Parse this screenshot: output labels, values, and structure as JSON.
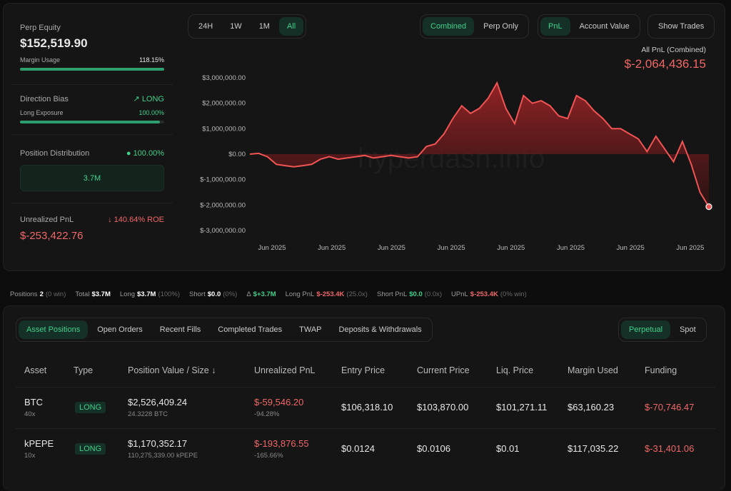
{
  "summary": {
    "perp_equity_label": "Perp Equity",
    "perp_equity": "$152,519.90",
    "margin_usage_label": "Margin Usage",
    "margin_usage": "118.15%",
    "margin_usage_fill": 1.0,
    "direction_bias_label": "Direction Bias",
    "direction_bias": "LONG",
    "long_exposure_label": "Long Exposure",
    "long_exposure": "100.00%",
    "long_exposure_fill": 0.97,
    "position_distribution_label": "Position Distribution",
    "position_distribution": "100.00%",
    "distribution_bar_value": "3.7M",
    "unrealized_pnl_label": "Unrealized PnL",
    "roe": "140.64% ROE",
    "unrealized_pnl": "$-253,422.76"
  },
  "chart_controls": {
    "ranges": [
      "24H",
      "1W",
      "1M",
      "All"
    ],
    "active_range": "All",
    "modes": [
      "Combined",
      "Perp Only"
    ],
    "metrics": [
      "PnL",
      "Account Value"
    ],
    "show_trades": "Show Trades"
  },
  "chart_header": {
    "label": "All PnL (Combined)",
    "value": "$-2,064,436.15"
  },
  "watermark": "hyperdash.info",
  "chart_data": {
    "type": "area",
    "y_ticks": [
      "$3,000,000.00",
      "$2,000,000.00",
      "$1,000,000.00",
      "$0.00",
      "$-1,000,000.00",
      "$-2,000,000.00",
      "$-3,000,000.00"
    ],
    "x_ticks": [
      "Jun 2025",
      "Jun 2025",
      "Jun 2025",
      "Jun 2025",
      "Jun 2025",
      "Jun 2025",
      "Jun 2025",
      "Jun 2025"
    ],
    "ylim": [
      -3000000,
      3000000
    ],
    "line_color": "#f05454",
    "values": [
      0,
      30000,
      -100000,
      -400000,
      -450000,
      -500000,
      -450000,
      -400000,
      -200000,
      -100000,
      -200000,
      -150000,
      -100000,
      -50000,
      -150000,
      -100000,
      -50000,
      -100000,
      -150000,
      -100000,
      300000,
      400000,
      800000,
      1400000,
      1900000,
      1600000,
      1800000,
      2200000,
      2800000,
      1800000,
      1200000,
      2300000,
      2000000,
      2100000,
      1900000,
      1500000,
      1400000,
      2300000,
      2100000,
      1700000,
      1400000,
      1000000,
      1000000,
      800000,
      600000,
      100000,
      700000,
      200000,
      -300000,
      500000,
      -400000,
      -1500000,
      -2064436
    ]
  },
  "stats": [
    {
      "k": "Positions",
      "v": "2",
      "n": "(0 win)",
      "c": "w"
    },
    {
      "k": "Total",
      "v": "$3.7M",
      "n": "",
      "c": "w"
    },
    {
      "k": "Long",
      "v": "$3.7M",
      "n": "(100%)",
      "c": "w"
    },
    {
      "k": "Short",
      "v": "$0.0",
      "n": "(0%)",
      "c": "w"
    },
    {
      "k": "Δ",
      "v": "$+3.7M",
      "n": "",
      "c": "g"
    },
    {
      "k": "Long PnL",
      "v": "$-253.4K",
      "n": "(25.0x)",
      "c": "r"
    },
    {
      "k": "Short PnL",
      "v": "$0.0",
      "n": "(0.0x)",
      "c": "g"
    },
    {
      "k": "UPnL",
      "v": "$-253.4K",
      "n": "(0% win)",
      "c": "r"
    }
  ],
  "tabs": [
    "Asset Positions",
    "Open Orders",
    "Recent Fills",
    "Completed Trades",
    "TWAP",
    "Deposits & Withdrawals"
  ],
  "market_tabs": [
    "Perpetual",
    "Spot"
  ],
  "table": {
    "headers": [
      "Asset",
      "Type",
      "Position Value / Size ↓",
      "Unrealized PnL",
      "Entry Price",
      "Current Price",
      "Liq. Price",
      "Margin Used",
      "Funding"
    ],
    "rows": [
      {
        "asset": "BTC",
        "lev": "40x",
        "type": "LONG",
        "value": "$2,526,409.24",
        "size": "24.3228 BTC",
        "pnl": "$-59,546.20",
        "pnl_pct": "-94.28%",
        "entry": "$106,318.10",
        "current": "$103,870.00",
        "liq": "$101,271.11",
        "margin": "$63,160.23",
        "funding": "$-70,746.47"
      },
      {
        "asset": "kPEPE",
        "lev": "10x",
        "type": "LONG",
        "value": "$1,170,352.17",
        "size": "110,275,339.00 kPEPE",
        "pnl": "$-193,876.55",
        "pnl_pct": "-165.66%",
        "entry": "$0.0124",
        "current": "$0.0106",
        "liq": "$0.01",
        "margin": "$117,035.22",
        "funding": "$-31,401.06"
      }
    ]
  }
}
